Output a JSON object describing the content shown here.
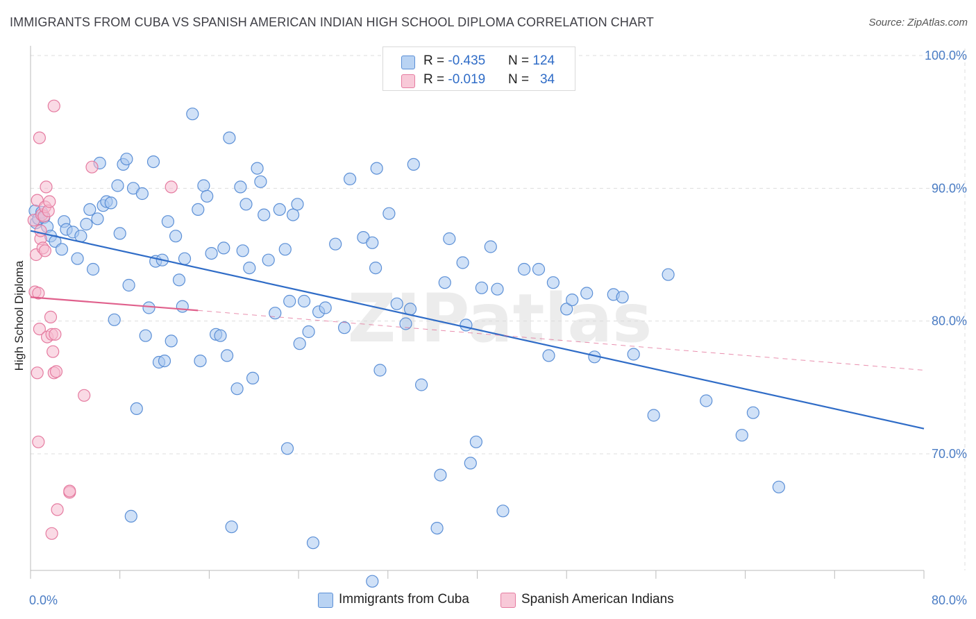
{
  "title": "IMMIGRANTS FROM CUBA VS SPANISH AMERICAN INDIAN HIGH SCHOOL DIPLOMA CORRELATION CHART",
  "source": "Source: ZipAtlas.com",
  "watermark": "ZIPatlas",
  "colors": {
    "blue_fill": "#a9c8f0",
    "blue_stroke": "#5b8fd6",
    "blue_line": "#2f6cc7",
    "pink_fill": "#f6bcd0",
    "pink_stroke": "#e57ba0",
    "pink_line": "#e0608c",
    "tick_text": "#4a7cc4",
    "grid": "#dddddd"
  },
  "legend": {
    "rows": [
      {
        "r_label": "R = ",
        "r_value": "-0.435",
        "n_label": "N = ",
        "n_value": "124"
      },
      {
        "r_label": "R = ",
        "r_value": "-0.019",
        "n_label": "N = ",
        "n_value": "34"
      }
    ]
  },
  "chart_data": {
    "type": "scatter",
    "title": "IMMIGRANTS FROM CUBA VS SPANISH AMERICAN INDIAN HIGH SCHOOL DIPLOMA CORRELATION CHART",
    "xlabel": "",
    "ylabel": "High School Diploma",
    "xlim": [
      0,
      80
    ],
    "ylim": [
      60.5,
      102.5
    ],
    "x_tick_labels": [
      "0.0%",
      "80.0%"
    ],
    "y_ticks": [
      70,
      80,
      90,
      100
    ],
    "y_tick_labels": [
      "70.0%",
      "80.0%",
      "90.0%",
      "100.0%"
    ],
    "grid": true,
    "legend_position": "top-center",
    "series": [
      {
        "name": "Immigrants from Cuba",
        "r": -0.435,
        "n": 124,
        "trend": {
          "x": [
            0,
            80
          ],
          "y": [
            86.8,
            71.9
          ],
          "style": "solid"
        },
        "points": [
          [
            0.4,
            88.3
          ],
          [
            0.5,
            87.4
          ],
          [
            0.7,
            87.7
          ],
          [
            1.0,
            88.2
          ],
          [
            1.2,
            87.8
          ],
          [
            1.5,
            87.1
          ],
          [
            1.8,
            86.4
          ],
          [
            2.2,
            86.0
          ],
          [
            2.8,
            85.4
          ],
          [
            3.0,
            87.5
          ],
          [
            3.2,
            86.9
          ],
          [
            3.8,
            86.7
          ],
          [
            4.2,
            84.7
          ],
          [
            4.5,
            86.4
          ],
          [
            5.0,
            87.3
          ],
          [
            5.3,
            88.4
          ],
          [
            5.6,
            83.9
          ],
          [
            6.0,
            87.7
          ],
          [
            6.2,
            91.9
          ],
          [
            6.5,
            88.7
          ],
          [
            6.8,
            89.0
          ],
          [
            7.2,
            88.9
          ],
          [
            7.5,
            80.1
          ],
          [
            7.8,
            90.2
          ],
          [
            8.0,
            86.6
          ],
          [
            8.3,
            91.8
          ],
          [
            8.6,
            92.2
          ],
          [
            8.8,
            82.7
          ],
          [
            9.2,
            90.0
          ],
          [
            9.5,
            73.4
          ],
          [
            10.0,
            89.6
          ],
          [
            10.3,
            78.9
          ],
          [
            10.6,
            81.0
          ],
          [
            11.0,
            92.0
          ],
          [
            11.2,
            84.5
          ],
          [
            11.5,
            76.9
          ],
          [
            11.8,
            84.6
          ],
          [
            12.0,
            77.0
          ],
          [
            12.3,
            87.5
          ],
          [
            12.6,
            78.5
          ],
          [
            13.0,
            86.4
          ],
          [
            13.3,
            83.1
          ],
          [
            13.6,
            81.1
          ],
          [
            13.8,
            84.7
          ],
          [
            14.5,
            95.6
          ],
          [
            15.0,
            88.4
          ],
          [
            15.2,
            77.0
          ],
          [
            15.5,
            90.2
          ],
          [
            15.8,
            89.4
          ],
          [
            16.2,
            85.1
          ],
          [
            16.6,
            79.0
          ],
          [
            17.0,
            78.9
          ],
          [
            17.3,
            85.5
          ],
          [
            17.6,
            77.4
          ],
          [
            17.8,
            93.8
          ],
          [
            18.5,
            74.9
          ],
          [
            18.8,
            90.1
          ],
          [
            19.0,
            85.3
          ],
          [
            19.3,
            88.8
          ],
          [
            19.6,
            84.0
          ],
          [
            19.9,
            75.7
          ],
          [
            20.3,
            91.5
          ],
          [
            20.6,
            90.5
          ],
          [
            20.9,
            88.0
          ],
          [
            21.3,
            84.6
          ],
          [
            21.9,
            80.6
          ],
          [
            22.3,
            88.4
          ],
          [
            22.8,
            85.4
          ],
          [
            23.2,
            81.5
          ],
          [
            23.5,
            88.0
          ],
          [
            23.9,
            88.8
          ],
          [
            24.1,
            78.3
          ],
          [
            24.5,
            81.5
          ],
          [
            24.9,
            79.2
          ],
          [
            25.8,
            80.7
          ],
          [
            26.4,
            81.0
          ],
          [
            27.3,
            85.8
          ],
          [
            28.1,
            79.5
          ],
          [
            28.6,
            90.7
          ],
          [
            29.8,
            86.3
          ],
          [
            30.6,
            85.9
          ],
          [
            30.9,
            84.0
          ],
          [
            31.0,
            91.5
          ],
          [
            31.3,
            76.3
          ],
          [
            32.1,
            88.1
          ],
          [
            32.8,
            81.3
          ],
          [
            33.6,
            79.8
          ],
          [
            34.0,
            80.9
          ],
          [
            34.3,
            91.8
          ],
          [
            35.0,
            75.2
          ],
          [
            36.7,
            68.4
          ],
          [
            37.1,
            82.9
          ],
          [
            37.5,
            86.2
          ],
          [
            38.7,
            84.4
          ],
          [
            39.0,
            79.7
          ],
          [
            39.9,
            70.9
          ],
          [
            40.4,
            82.5
          ],
          [
            41.2,
            85.6
          ],
          [
            41.8,
            82.4
          ],
          [
            42.3,
            65.7
          ],
          [
            44.2,
            83.9
          ],
          [
            45.5,
            83.9
          ],
          [
            46.4,
            77.4
          ],
          [
            46.8,
            82.9
          ],
          [
            48.0,
            80.9
          ],
          [
            48.5,
            81.6
          ],
          [
            49.8,
            82.1
          ],
          [
            50.5,
            77.3
          ],
          [
            52.2,
            82.0
          ],
          [
            53.0,
            81.8
          ],
          [
            54.0,
            77.5
          ],
          [
            55.8,
            72.9
          ],
          [
            57.1,
            83.5
          ],
          [
            60.5,
            74.0
          ],
          [
            63.7,
            71.4
          ],
          [
            64.7,
            73.1
          ],
          [
            67.0,
            67.5
          ],
          [
            23.0,
            70.4
          ],
          [
            9.0,
            65.3
          ],
          [
            18.0,
            64.5
          ],
          [
            25.3,
            63.3
          ],
          [
            30.6,
            60.4
          ],
          [
            36.4,
            64.4
          ],
          [
            39.4,
            69.3
          ]
        ]
      },
      {
        "name": "Spanish American Indians",
        "r": -0.019,
        "n": 34,
        "trend": {
          "x": [
            0,
            15
          ],
          "y": [
            81.8,
            80.8
          ],
          "style": "solid",
          "extension": {
            "x": [
              15,
              80
            ],
            "y": [
              80.8,
              76.3
            ],
            "style": "dashed"
          }
        },
        "points": [
          [
            0.3,
            87.6
          ],
          [
            0.4,
            82.2
          ],
          [
            0.5,
            85.0
          ],
          [
            0.6,
            89.1
          ],
          [
            0.7,
            82.1
          ],
          [
            0.8,
            79.4
          ],
          [
            0.9,
            86.2
          ],
          [
            1.0,
            88.0
          ],
          [
            1.1,
            85.5
          ],
          [
            1.2,
            87.9
          ],
          [
            1.3,
            88.6
          ],
          [
            1.4,
            90.1
          ],
          [
            1.5,
            78.8
          ],
          [
            1.6,
            88.3
          ],
          [
            1.7,
            89.0
          ],
          [
            1.8,
            80.3
          ],
          [
            1.9,
            79.0
          ],
          [
            2.0,
            77.7
          ],
          [
            2.1,
            76.1
          ],
          [
            2.2,
            79.0
          ],
          [
            0.8,
            93.8
          ],
          [
            2.1,
            96.2
          ],
          [
            0.6,
            76.1
          ],
          [
            0.7,
            70.9
          ],
          [
            2.3,
            76.2
          ],
          [
            2.4,
            65.8
          ],
          [
            3.5,
            67.1
          ],
          [
            3.5,
            67.2
          ],
          [
            1.9,
            64.0
          ],
          [
            5.5,
            91.6
          ],
          [
            12.6,
            90.1
          ],
          [
            4.8,
            74.4
          ],
          [
            0.9,
            86.8
          ],
          [
            1.3,
            85.3
          ]
        ]
      }
    ]
  },
  "bottom_legend": {
    "items": [
      "Immigrants from Cuba",
      "Spanish American Indians"
    ]
  }
}
